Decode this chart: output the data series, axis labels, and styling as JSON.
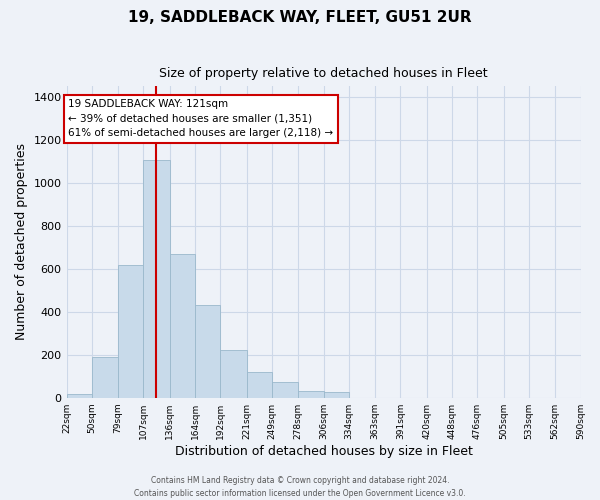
{
  "title": "19, SADDLEBACK WAY, FLEET, GU51 2UR",
  "subtitle": "Size of property relative to detached houses in Fleet",
  "xlabel": "Distribution of detached houses by size in Fleet",
  "ylabel": "Number of detached properties",
  "bar_color": "#c8daea",
  "bar_edge_color": "#9ab8cc",
  "bins": [
    22,
    50,
    79,
    107,
    136,
    164,
    192,
    221,
    249,
    278,
    306,
    334,
    363,
    391,
    420,
    448,
    476,
    505,
    533,
    562,
    590
  ],
  "counts": [
    15,
    190,
    615,
    1105,
    670,
    430,
    220,
    120,
    75,
    30,
    25,
    0,
    0,
    0,
    0,
    0,
    0,
    0,
    0,
    0
  ],
  "tick_labels": [
    "22sqm",
    "50sqm",
    "79sqm",
    "107sqm",
    "136sqm",
    "164sqm",
    "192sqm",
    "221sqm",
    "249sqm",
    "278sqm",
    "306sqm",
    "334sqm",
    "363sqm",
    "391sqm",
    "420sqm",
    "448sqm",
    "476sqm",
    "505sqm",
    "533sqm",
    "562sqm",
    "590sqm"
  ],
  "ylim": [
    0,
    1450
  ],
  "yticks": [
    0,
    200,
    400,
    600,
    800,
    1000,
    1200,
    1400
  ],
  "property_line_x": 121,
  "annotation_line1": "19 SADDLEBACK WAY: 121sqm",
  "annotation_line2": "← 39% of detached houses are smaller (1,351)",
  "annotation_line3": "61% of semi-detached houses are larger (2,118) →",
  "annotation_box_color": "#ffffff",
  "annotation_box_edge_color": "#cc0000",
  "grid_color": "#cdd8e8",
  "background_color": "#eef2f8",
  "footer1": "Contains HM Land Registry data © Crown copyright and database right 2024.",
  "footer2": "Contains public sector information licensed under the Open Government Licence v3.0."
}
